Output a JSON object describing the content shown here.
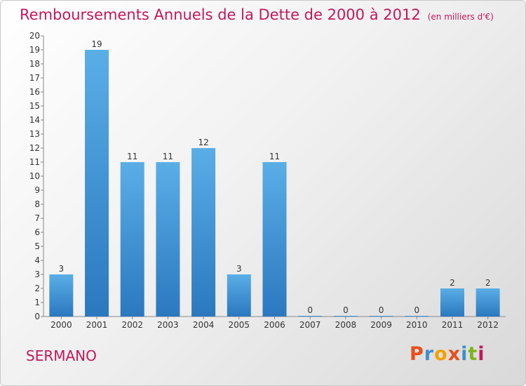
{
  "header": {
    "title": "Remboursements Annuels de la Dette de 2000 à 2012",
    "unit": "(en milliers d'€)"
  },
  "footer": {
    "commune": "SERMANO",
    "logo_text": "Proxiti",
    "logo_colors": [
      "#e94e1b",
      "#3a8fd0",
      "#f2a100",
      "#e94e1b",
      "#3a8fd0",
      "#7cb518",
      "#c2185b"
    ]
  },
  "colors": {
    "bar_top": "#5aaee6",
    "bar_bottom": "#2b78bf",
    "title": "#c2185b"
  },
  "chart_data": {
    "type": "bar",
    "title": "Remboursements Annuels de la Dette de 2000 à 2012",
    "subtitle": "(en milliers d'€)",
    "categories": [
      "2000",
      "2001",
      "2002",
      "2003",
      "2004",
      "2005",
      "2006",
      "2007",
      "2008",
      "2009",
      "2010",
      "2011",
      "2012"
    ],
    "values": [
      3,
      19,
      11,
      11,
      12,
      3,
      11,
      0,
      0,
      0,
      0,
      2,
      2
    ],
    "data_labels": [
      "3",
      "19",
      "11",
      "11",
      "12",
      "3",
      "11",
      "0",
      "0",
      "0",
      "0",
      "2",
      "2"
    ],
    "ylim": [
      0,
      20
    ],
    "yticks": [
      "0",
      "1",
      "2",
      "3",
      "4",
      "5",
      "6",
      "7",
      "8",
      "9",
      "10",
      "11",
      "12",
      "13",
      "14",
      "15",
      "16",
      "17",
      "18",
      "19",
      "20"
    ],
    "grid": false,
    "legend": "none"
  }
}
